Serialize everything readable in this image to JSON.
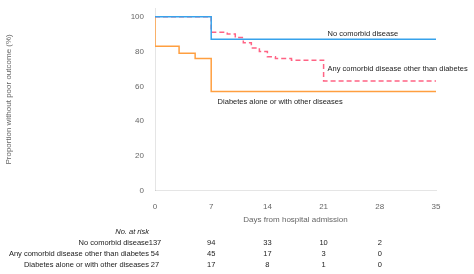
{
  "chart_data": {
    "type": "step",
    "xlabel": "Days from hospital admission",
    "ylabel": "Proportion without poor outcome (%)",
    "xlim": [
      0,
      35
    ],
    "ylim": [
      0,
      105
    ],
    "xticks": [
      0,
      7,
      14,
      21,
      28,
      35
    ],
    "yticks": [
      0,
      20,
      40,
      60,
      80,
      100
    ],
    "grid": false,
    "series": [
      {
        "name": "No comorbid disease",
        "line_style": "solid",
        "x": [
          0,
          7,
          7,
          21,
          21,
          35
        ],
        "values": [
          100,
          100,
          87,
          87,
          87,
          87
        ]
      },
      {
        "name": "Any comorbid disease other than diabetes",
        "line_style": "dashed",
        "x": [
          0,
          7,
          7,
          8,
          9,
          10,
          11,
          12,
          13,
          14,
          15,
          16,
          17,
          18,
          21,
          21,
          22,
          35
        ],
        "values": [
          100,
          100,
          93,
          91,
          91,
          90,
          88,
          85,
          82,
          80,
          77,
          76,
          76,
          75,
          75,
          64,
          63,
          63
        ]
      },
      {
        "name": "Diabetes alone or with other diseases",
        "line_style": "solid",
        "x": [
          0,
          0,
          3,
          5,
          6,
          7,
          7,
          14,
          35
        ],
        "values": [
          100,
          86,
          83,
          79,
          76,
          76,
          59,
          57,
          57
        ]
      }
    ],
    "annotations": [
      {
        "x": 21.5,
        "y": 90,
        "text": "No comorbid disease"
      },
      {
        "x": 21.5,
        "y": 70,
        "text": "Any comorbid disease other than diabetes"
      },
      {
        "x": 7.8,
        "y": 51,
        "text": "Diabetes alone or with other diseases"
      }
    ],
    "risk_table": {
      "header": "No. at risk",
      "x": [
        0,
        7,
        14,
        21,
        28
      ],
      "rows": [
        {
          "label": "No comorbid disease",
          "values": [
            137,
            94,
            33,
            10,
            2
          ]
        },
        {
          "label": "Any comorbid disease other than diabetes",
          "values": [
            54,
            45,
            17,
            3,
            0
          ]
        },
        {
          "label": "Diabetes alone or with other diseases",
          "values": [
            27,
            17,
            8,
            1,
            0
          ]
        }
      ]
    }
  }
}
